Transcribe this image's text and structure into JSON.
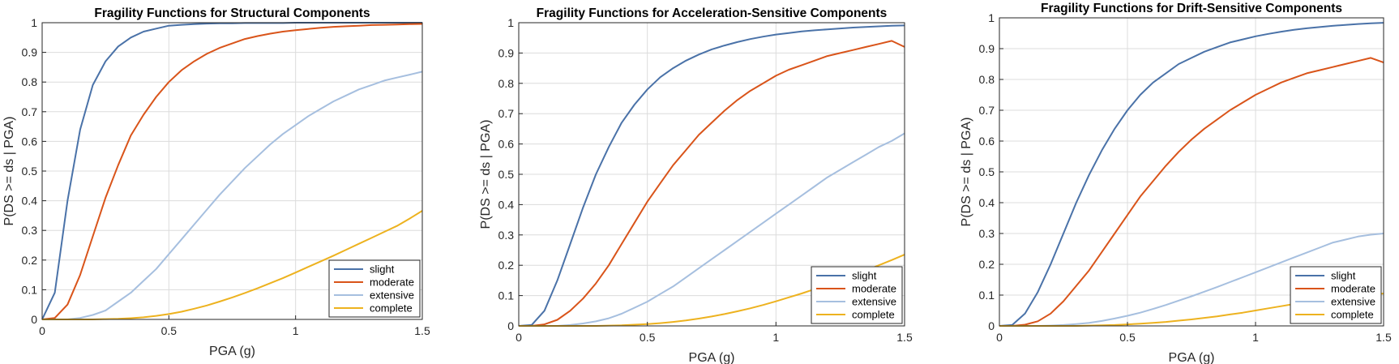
{
  "colors": {
    "slight": "#4a72a8",
    "moderate": "#d9541a",
    "extensive": "#a6bfdf",
    "complete": "#edb21f",
    "grid": "#dcdcdc",
    "axes": "#262626"
  },
  "chart_data": [
    {
      "type": "line",
      "title": "Fragility Functions for Structural Components",
      "xlabel": "PGA (g)",
      "ylabel": "P(DS >= ds | PGA)",
      "xlim": [
        0,
        1.5
      ],
      "ylim": [
        0,
        1
      ],
      "xticks": [
        "0",
        "0.5",
        "1",
        "1.5"
      ],
      "yticks": [
        "0",
        "0.1",
        "0.2",
        "0.3",
        "0.4",
        "0.5",
        "0.6",
        "0.7",
        "0.8",
        "0.9",
        "1"
      ],
      "grid": true,
      "legend": "bottom-right",
      "x": [
        0,
        0.05,
        0.1,
        0.15,
        0.2,
        0.25,
        0.3,
        0.35,
        0.4,
        0.45,
        0.5,
        0.55,
        0.6,
        0.65,
        0.7,
        0.75,
        0.8,
        0.85,
        0.9,
        0.95,
        1.0,
        1.05,
        1.1,
        1.15,
        1.2,
        1.25,
        1.3,
        1.35,
        1.4,
        1.45,
        1.5
      ],
      "series": [
        {
          "name": "slight",
          "values": [
            0,
            0.09,
            0.4,
            0.64,
            0.79,
            0.87,
            0.92,
            0.95,
            0.97,
            0.98,
            0.99,
            0.993,
            0.995,
            0.997,
            0.998,
            0.998,
            0.999,
            0.999,
            0.999,
            0.999,
            1.0,
            1.0,
            1.0,
            1.0,
            1.0,
            1.0,
            1.0,
            1.0,
            1.0,
            1.0,
            1.0
          ]
        },
        {
          "name": "moderate",
          "values": [
            0,
            0.005,
            0.05,
            0.15,
            0.28,
            0.41,
            0.52,
            0.62,
            0.69,
            0.75,
            0.8,
            0.84,
            0.87,
            0.895,
            0.915,
            0.93,
            0.945,
            0.955,
            0.963,
            0.97,
            0.975,
            0.979,
            0.983,
            0.986,
            0.988,
            0.99,
            0.992,
            0.993,
            0.994,
            0.995,
            0.996
          ]
        },
        {
          "name": "extensive",
          "values": [
            0,
            0,
            0,
            0.005,
            0.015,
            0.03,
            0.06,
            0.09,
            0.13,
            0.17,
            0.22,
            0.27,
            0.32,
            0.37,
            0.42,
            0.465,
            0.51,
            0.55,
            0.59,
            0.625,
            0.655,
            0.685,
            0.71,
            0.735,
            0.755,
            0.775,
            0.79,
            0.805,
            0.815,
            0.825,
            0.835
          ]
        },
        {
          "name": "complete",
          "values": [
            0,
            0,
            0,
            0,
            0,
            0.001,
            0.002,
            0.004,
            0.007,
            0.012,
            0.018,
            0.026,
            0.036,
            0.047,
            0.06,
            0.074,
            0.089,
            0.105,
            0.122,
            0.139,
            0.158,
            0.177,
            0.196,
            0.215,
            0.235,
            0.255,
            0.275,
            0.295,
            0.315,
            0.34,
            0.366
          ]
        }
      ]
    },
    {
      "type": "line",
      "title": "Fragility Functions for Acceleration-Sensitive Components",
      "xlabel": "PGA (g)",
      "ylabel": "P(DS >= ds | PGA)",
      "xlim": [
        0,
        1.5
      ],
      "ylim": [
        0,
        1
      ],
      "xticks": [
        "0",
        "0.5",
        "1",
        "1.5"
      ],
      "yticks": [
        "0",
        "0.1",
        "0.2",
        "0.3",
        "0.4",
        "0.5",
        "0.6",
        "0.7",
        "0.8",
        "0.9",
        "1"
      ],
      "grid": true,
      "legend": "bottom-right",
      "x": [
        0,
        0.05,
        0.1,
        0.15,
        0.2,
        0.25,
        0.3,
        0.35,
        0.4,
        0.45,
        0.5,
        0.55,
        0.6,
        0.65,
        0.7,
        0.75,
        0.8,
        0.85,
        0.9,
        0.95,
        1.0,
        1.05,
        1.1,
        1.15,
        1.2,
        1.25,
        1.3,
        1.35,
        1.4,
        1.45,
        1.5
      ],
      "series": [
        {
          "name": "slight",
          "values": [
            0,
            0.003,
            0.05,
            0.15,
            0.27,
            0.39,
            0.5,
            0.59,
            0.67,
            0.73,
            0.78,
            0.82,
            0.85,
            0.875,
            0.895,
            0.912,
            0.925,
            0.936,
            0.946,
            0.954,
            0.961,
            0.966,
            0.971,
            0.975,
            0.978,
            0.981,
            0.984,
            0.986,
            0.988,
            0.99,
            0.991
          ]
        },
        {
          "name": "moderate",
          "values": [
            0,
            0,
            0.005,
            0.02,
            0.05,
            0.09,
            0.14,
            0.2,
            0.27,
            0.34,
            0.41,
            0.47,
            0.53,
            0.58,
            0.63,
            0.67,
            0.71,
            0.745,
            0.775,
            0.8,
            0.825,
            0.845,
            0.86,
            0.875,
            0.89,
            0.9,
            0.91,
            0.92,
            0.93,
            0.94,
            0.92
          ]
        },
        {
          "name": "extensive",
          "values": [
            0,
            0,
            0,
            0,
            0.003,
            0.008,
            0.015,
            0.025,
            0.04,
            0.06,
            0.08,
            0.105,
            0.13,
            0.16,
            0.19,
            0.22,
            0.25,
            0.28,
            0.31,
            0.34,
            0.37,
            0.4,
            0.43,
            0.46,
            0.49,
            0.515,
            0.54,
            0.565,
            0.59,
            0.61,
            0.635
          ]
        },
        {
          "name": "complete",
          "values": [
            0,
            0,
            0,
            0,
            0,
            0,
            0,
            0.001,
            0.002,
            0.004,
            0.006,
            0.009,
            0.013,
            0.018,
            0.024,
            0.031,
            0.039,
            0.048,
            0.058,
            0.069,
            0.081,
            0.094,
            0.107,
            0.121,
            0.136,
            0.151,
            0.167,
            0.183,
            0.2,
            0.217,
            0.235
          ]
        }
      ]
    },
    {
      "type": "line",
      "title": "Fragility Functions for Drift-Sensitive Components",
      "xlabel": "PGA (g)",
      "ylabel": "P(DS >= ds | PGA)",
      "xlim": [
        0,
        1.5
      ],
      "ylim": [
        0,
        1
      ],
      "xticks": [
        "0",
        "0.5",
        "1",
        "1.5"
      ],
      "yticks": [
        "0",
        "0.1",
        "0.2",
        "0.3",
        "0.4",
        "0.5",
        "0.6",
        "0.7",
        "0.8",
        "0.9",
        "1"
      ],
      "grid": true,
      "legend": "bottom-right",
      "x": [
        0,
        0.05,
        0.1,
        0.15,
        0.2,
        0.25,
        0.3,
        0.35,
        0.4,
        0.45,
        0.5,
        0.55,
        0.6,
        0.65,
        0.7,
        0.75,
        0.8,
        0.85,
        0.9,
        0.95,
        1.0,
        1.05,
        1.1,
        1.15,
        1.2,
        1.25,
        1.3,
        1.35,
        1.4,
        1.45,
        1.5
      ],
      "series": [
        {
          "name": "slight",
          "values": [
            0,
            0.003,
            0.04,
            0.11,
            0.2,
            0.3,
            0.4,
            0.49,
            0.57,
            0.64,
            0.7,
            0.75,
            0.79,
            0.82,
            0.85,
            0.87,
            0.89,
            0.905,
            0.92,
            0.93,
            0.94,
            0.948,
            0.955,
            0.961,
            0.966,
            0.97,
            0.974,
            0.977,
            0.98,
            0.982,
            0.984
          ]
        },
        {
          "name": "moderate",
          "values": [
            0,
            0,
            0.004,
            0.015,
            0.04,
            0.08,
            0.13,
            0.18,
            0.24,
            0.3,
            0.36,
            0.42,
            0.47,
            0.52,
            0.565,
            0.605,
            0.64,
            0.67,
            0.7,
            0.725,
            0.75,
            0.77,
            0.79,
            0.805,
            0.82,
            0.83,
            0.84,
            0.85,
            0.86,
            0.87,
            0.855
          ]
        },
        {
          "name": "extensive",
          "values": [
            0,
            0,
            0,
            0,
            0.001,
            0.003,
            0.006,
            0.01,
            0.016,
            0.024,
            0.033,
            0.043,
            0.055,
            0.068,
            0.082,
            0.096,
            0.111,
            0.126,
            0.142,
            0.158,
            0.174,
            0.19,
            0.206,
            0.222,
            0.238,
            0.254,
            0.27,
            0.28,
            0.29,
            0.296,
            0.3
          ]
        },
        {
          "name": "complete",
          "values": [
            0,
            0,
            0,
            0,
            0,
            0,
            0,
            0.001,
            0.002,
            0.003,
            0.005,
            0.007,
            0.01,
            0.013,
            0.017,
            0.021,
            0.026,
            0.031,
            0.037,
            0.043,
            0.05,
            0.057,
            0.064,
            0.071,
            0.078,
            0.085,
            0.091,
            0.096,
            0.1,
            0.103,
            0.105
          ]
        }
      ]
    }
  ]
}
